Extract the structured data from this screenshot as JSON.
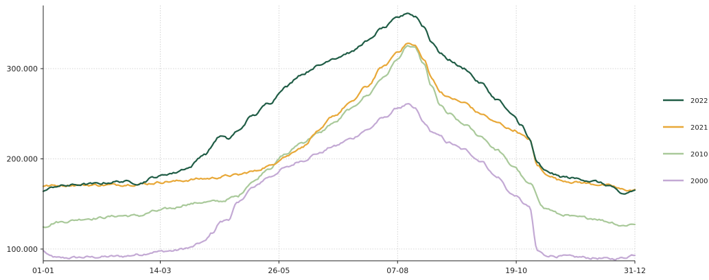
{
  "chart_data": {
    "type": "line",
    "title": "",
    "xlabel": "",
    "ylabel": "",
    "x_tick_labels": [
      "01-01",
      "14-03",
      "26-05",
      "07-08",
      "19-10",
      "31-12"
    ],
    "x_tick_days": [
      1,
      73,
      146,
      219,
      292,
      365
    ],
    "xlim": [
      1,
      365
    ],
    "y_tick_labels": [
      "100.000",
      "200.000",
      "300.000"
    ],
    "y_tick_values": [
      100000,
      200000,
      300000
    ],
    "ylim": [
      87000,
      370000
    ],
    "grid": true,
    "legend_position": "right",
    "series": [
      {
        "name": "2022",
        "color": "#1f5c45",
        "points": [
          [
            1,
            165000
          ],
          [
            10,
            170000
          ],
          [
            30,
            172000
          ],
          [
            50,
            175000
          ],
          [
            60,
            173000
          ],
          [
            70,
            180000
          ],
          [
            80,
            184000
          ],
          [
            90,
            190000
          ],
          [
            100,
            205000
          ],
          [
            110,
            225000
          ],
          [
            115,
            222000
          ],
          [
            120,
            230000
          ],
          [
            130,
            248000
          ],
          [
            140,
            262000
          ],
          [
            150,
            280000
          ],
          [
            160,
            294000
          ],
          [
            170,
            303000
          ],
          [
            180,
            312000
          ],
          [
            190,
            318000
          ],
          [
            200,
            330000
          ],
          [
            210,
            345000
          ],
          [
            220,
            357000
          ],
          [
            225,
            362000
          ],
          [
            230,
            358000
          ],
          [
            235,
            347000
          ],
          [
            240,
            330000
          ],
          [
            245,
            318000
          ],
          [
            250,
            310000
          ],
          [
            260,
            300000
          ],
          [
            270,
            284000
          ],
          [
            280,
            266000
          ],
          [
            290,
            248000
          ],
          [
            295,
            238000
          ],
          [
            300,
            222000
          ],
          [
            305,
            195000
          ],
          [
            310,
            186000
          ],
          [
            320,
            180000
          ],
          [
            330,
            178000
          ],
          [
            340,
            175000
          ],
          [
            350,
            170000
          ],
          [
            357,
            160000
          ],
          [
            365,
            165000
          ]
        ]
      },
      {
        "name": "2021",
        "color": "#e8a838",
        "points": [
          [
            1,
            170000
          ],
          [
            20,
            171000
          ],
          [
            40,
            171000
          ],
          [
            60,
            172000
          ],
          [
            80,
            175000
          ],
          [
            100,
            178000
          ],
          [
            120,
            182000
          ],
          [
            130,
            186000
          ],
          [
            140,
            192000
          ],
          [
            150,
            203000
          ],
          [
            160,
            213000
          ],
          [
            170,
            230000
          ],
          [
            180,
            248000
          ],
          [
            190,
            262000
          ],
          [
            200,
            280000
          ],
          [
            210,
            302000
          ],
          [
            220,
            320000
          ],
          [
            225,
            328000
          ],
          [
            230,
            325000
          ],
          [
            235,
            310000
          ],
          [
            240,
            290000
          ],
          [
            245,
            275000
          ],
          [
            250,
            268000
          ],
          [
            260,
            262000
          ],
          [
            270,
            250000
          ],
          [
            280,
            240000
          ],
          [
            290,
            232000
          ],
          [
            300,
            222000
          ],
          [
            305,
            193000
          ],
          [
            310,
            183000
          ],
          [
            320,
            176000
          ],
          [
            330,
            174000
          ],
          [
            340,
            172000
          ],
          [
            350,
            170000
          ],
          [
            357,
            166000
          ],
          [
            365,
            165000
          ]
        ]
      },
      {
        "name": "2010",
        "color": "#a9c99a",
        "points": [
          [
            1,
            125000
          ],
          [
            10,
            130000
          ],
          [
            30,
            134000
          ],
          [
            50,
            137000
          ],
          [
            60,
            137000
          ],
          [
            70,
            142000
          ],
          [
            80,
            145000
          ],
          [
            90,
            150000
          ],
          [
            100,
            152000
          ],
          [
            110,
            153000
          ],
          [
            120,
            158000
          ],
          [
            130,
            175000
          ],
          [
            140,
            190000
          ],
          [
            150,
            205000
          ],
          [
            160,
            218000
          ],
          [
            170,
            228000
          ],
          [
            180,
            240000
          ],
          [
            190,
            255000
          ],
          [
            200,
            270000
          ],
          [
            210,
            290000
          ],
          [
            220,
            312000
          ],
          [
            225,
            325000
          ],
          [
            230,
            322000
          ],
          [
            235,
            305000
          ],
          [
            240,
            280000
          ],
          [
            245,
            260000
          ],
          [
            250,
            250000
          ],
          [
            260,
            238000
          ],
          [
            270,
            225000
          ],
          [
            280,
            210000
          ],
          [
            290,
            192000
          ],
          [
            300,
            172000
          ],
          [
            310,
            145000
          ],
          [
            320,
            138000
          ],
          [
            330,
            135000
          ],
          [
            340,
            134000
          ],
          [
            350,
            130000
          ],
          [
            357,
            126000
          ],
          [
            365,
            128000
          ]
        ]
      },
      {
        "name": "2000",
        "color": "#c3a9d4",
        "points": [
          [
            1,
            98000
          ],
          [
            5,
            92000
          ],
          [
            10,
            90000
          ],
          [
            30,
            91000
          ],
          [
            50,
            92000
          ],
          [
            60,
            94000
          ],
          [
            70,
            97000
          ],
          [
            80,
            98000
          ],
          [
            90,
            101000
          ],
          [
            100,
            108000
          ],
          [
            105,
            118000
          ],
          [
            110,
            130000
          ],
          [
            115,
            133000
          ],
          [
            120,
            150000
          ],
          [
            130,
            168000
          ],
          [
            140,
            180000
          ],
          [
            150,
            190000
          ],
          [
            160,
            198000
          ],
          [
            170,
            206000
          ],
          [
            180,
            214000
          ],
          [
            190,
            222000
          ],
          [
            200,
            232000
          ],
          [
            210,
            245000
          ],
          [
            220,
            257000
          ],
          [
            225,
            260000
          ],
          [
            230,
            255000
          ],
          [
            235,
            240000
          ],
          [
            240,
            230000
          ],
          [
            245,
            225000
          ],
          [
            250,
            218000
          ],
          [
            260,
            210000
          ],
          [
            270,
            198000
          ],
          [
            280,
            180000
          ],
          [
            290,
            160000
          ],
          [
            300,
            147000
          ],
          [
            305,
            98000
          ],
          [
            310,
            93000
          ],
          [
            320,
            92000
          ],
          [
            330,
            91000
          ],
          [
            340,
            90000
          ],
          [
            350,
            89000
          ],
          [
            357,
            90000
          ],
          [
            365,
            94000
          ]
        ]
      }
    ]
  }
}
